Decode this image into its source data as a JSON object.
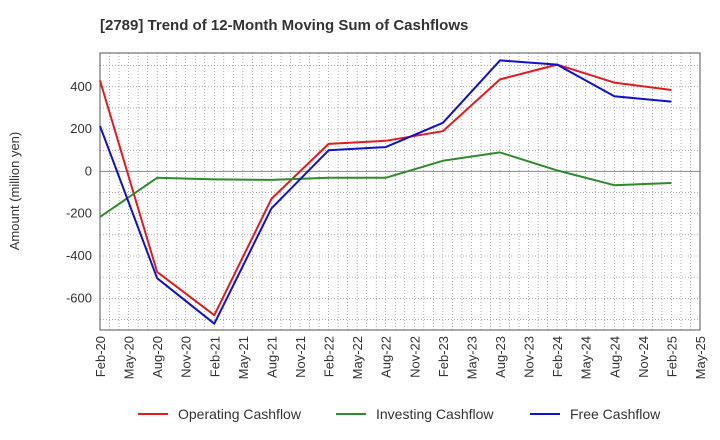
{
  "chart_data": {
    "type": "line",
    "title": "[2789]  Trend of 12-Month Moving Sum of Cashflows",
    "xlabel": "",
    "ylabel": "Amount (million yen)",
    "x_ticks": [
      "Feb-20",
      "May-20",
      "Aug-20",
      "Nov-20",
      "Feb-21",
      "May-21",
      "Aug-21",
      "Nov-21",
      "Feb-22",
      "May-22",
      "Aug-22",
      "Nov-22",
      "Feb-23",
      "May-23",
      "Aug-23",
      "Nov-23",
      "Feb-24",
      "May-24",
      "Aug-24",
      "Nov-24",
      "Feb-25",
      "May-25"
    ],
    "y_ticks": [
      400,
      200,
      0,
      -200,
      -400,
      -600
    ],
    "ylim": [
      -750,
      560
    ],
    "grid": true,
    "legend_position": "bottom",
    "x": [
      "Feb-20",
      "Aug-20",
      "Feb-21",
      "Aug-21",
      "Feb-22",
      "Aug-22",
      "Feb-23",
      "Aug-23",
      "Feb-24",
      "Aug-24",
      "Feb-25"
    ],
    "series": [
      {
        "name": "Operating Cashflow",
        "color": "#e41a1c",
        "values": [
          430,
          -475,
          -680,
          -130,
          130,
          145,
          190,
          435,
          505,
          420,
          385
        ]
      },
      {
        "name": "Investing Cashflow",
        "color": "#2e8b2e",
        "values": [
          -215,
          -30,
          -38,
          -40,
          -30,
          -30,
          50,
          90,
          5,
          -65,
          -55
        ]
      },
      {
        "name": "Free Cashflow",
        "color": "#1010d0",
        "values": [
          215,
          -505,
          -720,
          -175,
          100,
          115,
          230,
          525,
          505,
          355,
          330
        ]
      }
    ]
  }
}
